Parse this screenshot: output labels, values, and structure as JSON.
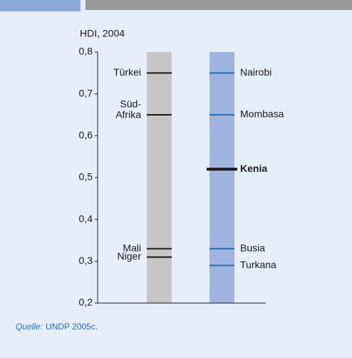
{
  "chart_data": {
    "type": "strip",
    "ylabel": "HDI, 2004",
    "ylim": [
      0.2,
      0.8
    ],
    "yticks": [
      {
        "value": 0.2,
        "label": "0,2"
      },
      {
        "value": 0.3,
        "label": "0,3"
      },
      {
        "value": 0.4,
        "label": "0,4"
      },
      {
        "value": 0.5,
        "label": "0,5"
      },
      {
        "value": 0.6,
        "label": "0,6"
      },
      {
        "value": 0.7,
        "label": "0,7"
      },
      {
        "value": 0.8,
        "label": "0,8"
      }
    ],
    "groups": [
      {
        "color": "#c6c6c6",
        "mark_color": "#1a1a1a",
        "label_color": "#1a1a1a",
        "label_side": "left",
        "labels": [
          "Türkei",
          [
            "Süd-",
            "Afrika"
          ],
          "Mali",
          "Niger"
        ],
        "values": [
          0.75,
          0.65,
          0.33,
          0.31
        ]
      },
      {
        "color": "#9fb5e0",
        "mark_color": "#2a6cb5",
        "label_color": "#2a6cb5",
        "label_side": "right",
        "labels": [
          "Nairobi",
          "Mombasa",
          "Kenia",
          "Busia",
          "Turkana"
        ],
        "values": [
          0.75,
          0.65,
          0.52,
          0.33,
          0.29
        ],
        "highlight": 2,
        "highlight_color": "#1a1a1a"
      }
    ],
    "source_label": "Quelle:",
    "source": "UNDP 2005c."
  }
}
